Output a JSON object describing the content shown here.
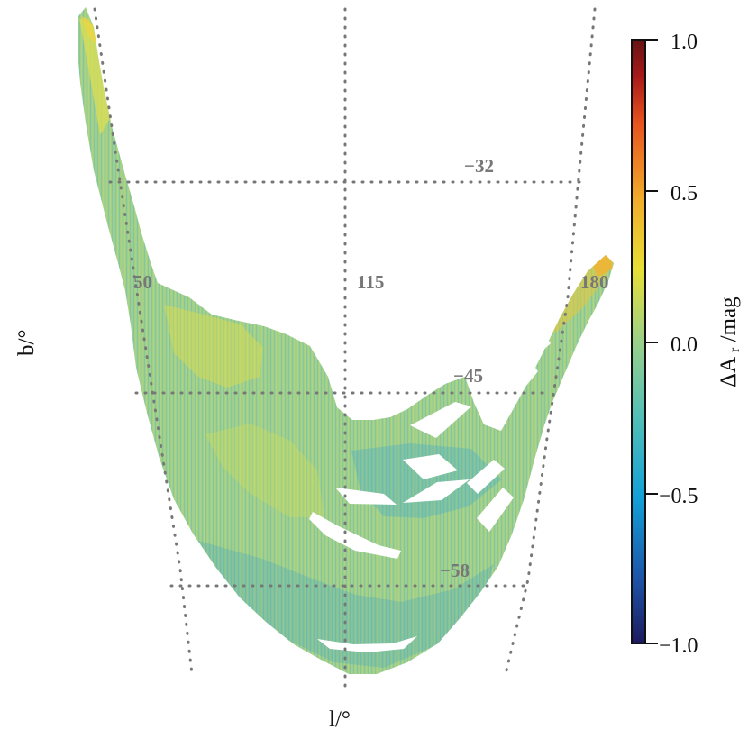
{
  "chart_data": {
    "type": "heatmap",
    "projection": "sky map in galactic longitude and latitude",
    "xlabel": "l/°",
    "ylabel": "b/°",
    "colorbar": {
      "label": "ΔAr/mag",
      "label_main": "ΔA",
      "label_subscript": "r",
      "label_suffix": "/mag",
      "range": [
        -1.0,
        1.0
      ],
      "ticks": [
        1.0,
        0.5,
        0.0,
        -0.5,
        -1.0
      ],
      "tick_labels": [
        "1.0",
        "0.5",
        "0.0",
        "−0.5",
        "−1.0"
      ],
      "colors": [
        "#1d1a5e",
        "#1d55a9",
        "#12a0d8",
        "#55c0b5",
        "#9ad089",
        "#e8df35",
        "#f0aa2b",
        "#e8541f",
        "#a71919",
        "#661414"
      ]
    },
    "longitude_labels": [
      "50",
      "115",
      "180"
    ],
    "longitude_values": [
      50,
      115,
      180
    ],
    "latitude_labels": [
      "−32",
      "−45",
      "−58"
    ],
    "latitude_values": [
      -32,
      -45,
      -58
    ],
    "grid": true,
    "grid_style": "dotted",
    "grid_color": "#777777",
    "dominant_values": [
      -0.1,
      0.15
    ],
    "data_summary": "Footprint mostly between ΔAr ≈ −0.15 and +0.2, with yellow/orange patches near the left and right upper arms."
  }
}
